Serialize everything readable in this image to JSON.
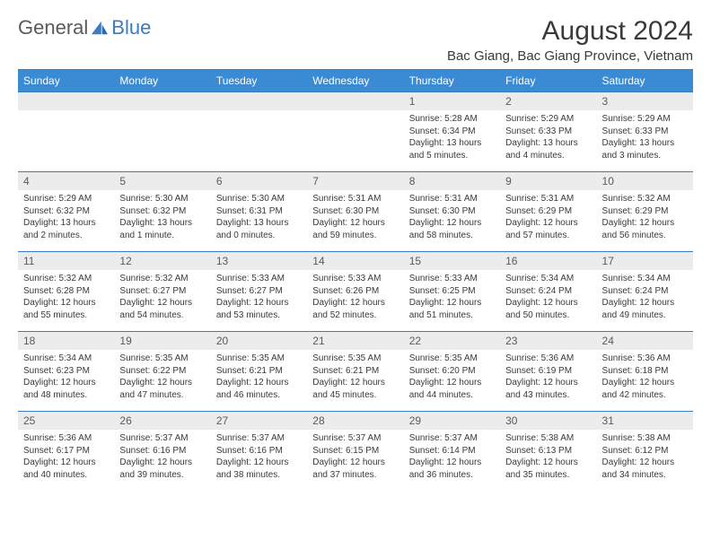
{
  "logo": {
    "part1": "General",
    "part2": "Blue"
  },
  "title": "August 2024",
  "location": "Bac Giang, Bac Giang Province, Vietnam",
  "weekdays": [
    "Sunday",
    "Monday",
    "Tuesday",
    "Wednesday",
    "Thursday",
    "Friday",
    "Saturday"
  ],
  "colors": {
    "header_bg": "#3b8bd4",
    "border": "#3b7bbf",
    "daynum_bg": "#ececec",
    "text": "#3a3a3a",
    "logo_gray": "#5a5a5a",
    "logo_blue": "#3b7bbf"
  },
  "weeks": [
    [
      {
        "num": "",
        "lines": []
      },
      {
        "num": "",
        "lines": []
      },
      {
        "num": "",
        "lines": []
      },
      {
        "num": "",
        "lines": []
      },
      {
        "num": "1",
        "lines": [
          "Sunrise: 5:28 AM",
          "Sunset: 6:34 PM",
          "Daylight: 13 hours",
          "and 5 minutes."
        ]
      },
      {
        "num": "2",
        "lines": [
          "Sunrise: 5:29 AM",
          "Sunset: 6:33 PM",
          "Daylight: 13 hours",
          "and 4 minutes."
        ]
      },
      {
        "num": "3",
        "lines": [
          "Sunrise: 5:29 AM",
          "Sunset: 6:33 PM",
          "Daylight: 13 hours",
          "and 3 minutes."
        ]
      }
    ],
    [
      {
        "num": "4",
        "lines": [
          "Sunrise: 5:29 AM",
          "Sunset: 6:32 PM",
          "Daylight: 13 hours",
          "and 2 minutes."
        ]
      },
      {
        "num": "5",
        "lines": [
          "Sunrise: 5:30 AM",
          "Sunset: 6:32 PM",
          "Daylight: 13 hours",
          "and 1 minute."
        ]
      },
      {
        "num": "6",
        "lines": [
          "Sunrise: 5:30 AM",
          "Sunset: 6:31 PM",
          "Daylight: 13 hours",
          "and 0 minutes."
        ]
      },
      {
        "num": "7",
        "lines": [
          "Sunrise: 5:31 AM",
          "Sunset: 6:30 PM",
          "Daylight: 12 hours",
          "and 59 minutes."
        ]
      },
      {
        "num": "8",
        "lines": [
          "Sunrise: 5:31 AM",
          "Sunset: 6:30 PM",
          "Daylight: 12 hours",
          "and 58 minutes."
        ]
      },
      {
        "num": "9",
        "lines": [
          "Sunrise: 5:31 AM",
          "Sunset: 6:29 PM",
          "Daylight: 12 hours",
          "and 57 minutes."
        ]
      },
      {
        "num": "10",
        "lines": [
          "Sunrise: 5:32 AM",
          "Sunset: 6:29 PM",
          "Daylight: 12 hours",
          "and 56 minutes."
        ]
      }
    ],
    [
      {
        "num": "11",
        "lines": [
          "Sunrise: 5:32 AM",
          "Sunset: 6:28 PM",
          "Daylight: 12 hours",
          "and 55 minutes."
        ]
      },
      {
        "num": "12",
        "lines": [
          "Sunrise: 5:32 AM",
          "Sunset: 6:27 PM",
          "Daylight: 12 hours",
          "and 54 minutes."
        ]
      },
      {
        "num": "13",
        "lines": [
          "Sunrise: 5:33 AM",
          "Sunset: 6:27 PM",
          "Daylight: 12 hours",
          "and 53 minutes."
        ]
      },
      {
        "num": "14",
        "lines": [
          "Sunrise: 5:33 AM",
          "Sunset: 6:26 PM",
          "Daylight: 12 hours",
          "and 52 minutes."
        ]
      },
      {
        "num": "15",
        "lines": [
          "Sunrise: 5:33 AM",
          "Sunset: 6:25 PM",
          "Daylight: 12 hours",
          "and 51 minutes."
        ]
      },
      {
        "num": "16",
        "lines": [
          "Sunrise: 5:34 AM",
          "Sunset: 6:24 PM",
          "Daylight: 12 hours",
          "and 50 minutes."
        ]
      },
      {
        "num": "17",
        "lines": [
          "Sunrise: 5:34 AM",
          "Sunset: 6:24 PM",
          "Daylight: 12 hours",
          "and 49 minutes."
        ]
      }
    ],
    [
      {
        "num": "18",
        "lines": [
          "Sunrise: 5:34 AM",
          "Sunset: 6:23 PM",
          "Daylight: 12 hours",
          "and 48 minutes."
        ]
      },
      {
        "num": "19",
        "lines": [
          "Sunrise: 5:35 AM",
          "Sunset: 6:22 PM",
          "Daylight: 12 hours",
          "and 47 minutes."
        ]
      },
      {
        "num": "20",
        "lines": [
          "Sunrise: 5:35 AM",
          "Sunset: 6:21 PM",
          "Daylight: 12 hours",
          "and 46 minutes."
        ]
      },
      {
        "num": "21",
        "lines": [
          "Sunrise: 5:35 AM",
          "Sunset: 6:21 PM",
          "Daylight: 12 hours",
          "and 45 minutes."
        ]
      },
      {
        "num": "22",
        "lines": [
          "Sunrise: 5:35 AM",
          "Sunset: 6:20 PM",
          "Daylight: 12 hours",
          "and 44 minutes."
        ]
      },
      {
        "num": "23",
        "lines": [
          "Sunrise: 5:36 AM",
          "Sunset: 6:19 PM",
          "Daylight: 12 hours",
          "and 43 minutes."
        ]
      },
      {
        "num": "24",
        "lines": [
          "Sunrise: 5:36 AM",
          "Sunset: 6:18 PM",
          "Daylight: 12 hours",
          "and 42 minutes."
        ]
      }
    ],
    [
      {
        "num": "25",
        "lines": [
          "Sunrise: 5:36 AM",
          "Sunset: 6:17 PM",
          "Daylight: 12 hours",
          "and 40 minutes."
        ]
      },
      {
        "num": "26",
        "lines": [
          "Sunrise: 5:37 AM",
          "Sunset: 6:16 PM",
          "Daylight: 12 hours",
          "and 39 minutes."
        ]
      },
      {
        "num": "27",
        "lines": [
          "Sunrise: 5:37 AM",
          "Sunset: 6:16 PM",
          "Daylight: 12 hours",
          "and 38 minutes."
        ]
      },
      {
        "num": "28",
        "lines": [
          "Sunrise: 5:37 AM",
          "Sunset: 6:15 PM",
          "Daylight: 12 hours",
          "and 37 minutes."
        ]
      },
      {
        "num": "29",
        "lines": [
          "Sunrise: 5:37 AM",
          "Sunset: 6:14 PM",
          "Daylight: 12 hours",
          "and 36 minutes."
        ]
      },
      {
        "num": "30",
        "lines": [
          "Sunrise: 5:38 AM",
          "Sunset: 6:13 PM",
          "Daylight: 12 hours",
          "and 35 minutes."
        ]
      },
      {
        "num": "31",
        "lines": [
          "Sunrise: 5:38 AM",
          "Sunset: 6:12 PM",
          "Daylight: 12 hours",
          "and 34 minutes."
        ]
      }
    ]
  ]
}
